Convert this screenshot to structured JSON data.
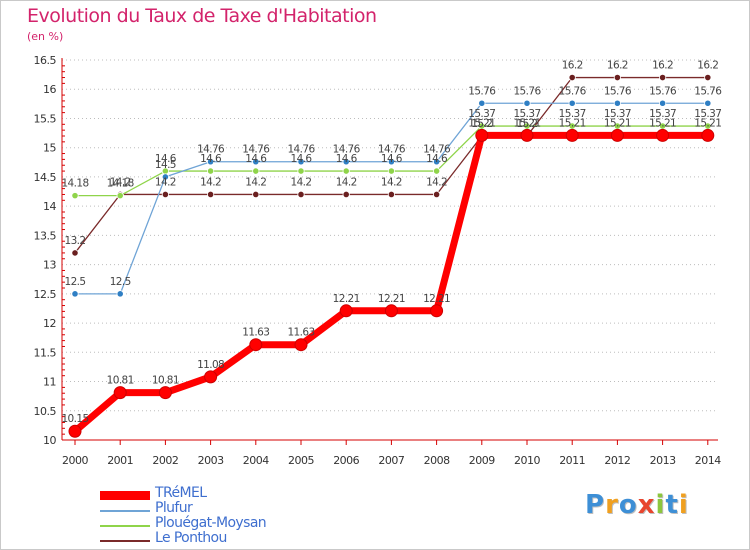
{
  "header": {
    "title": "Evolution du Taux de Taxe d'Habitation",
    "unit": "(en %)"
  },
  "chart_data": {
    "type": "line",
    "x": [
      2000,
      2001,
      2002,
      2003,
      2004,
      2005,
      2006,
      2007,
      2008,
      2009,
      2010,
      2011,
      2012,
      2013,
      2014
    ],
    "ylim": [
      10,
      16.5
    ],
    "yticks": [
      "10",
      "10.5",
      "11",
      "11.5",
      "12",
      "12.5",
      "13",
      "13.5",
      "14",
      "14.5",
      "15",
      "15.5",
      "16",
      "16.5"
    ],
    "grid": "horizontal dotted",
    "series": [
      {
        "name": "TRéMEL",
        "color": "#ff0000",
        "labels": [
          "10.15",
          "10.81",
          "10.81",
          "11.08",
          "11.63",
          "11.63",
          "12.21",
          "12.21",
          "12.21",
          "15.21",
          "15.21",
          "15.21",
          "15.21",
          "15.21",
          "15.21"
        ],
        "values": [
          10.15,
          10.81,
          10.81,
          11.08,
          11.63,
          11.63,
          12.21,
          12.21,
          12.21,
          15.21,
          15.21,
          15.21,
          15.21,
          15.21,
          15.21
        ]
      },
      {
        "name": "Plufur",
        "color": "#6fa4d6",
        "labels": [
          "12.5",
          "12.5",
          "14.5",
          "14.76",
          "14.76",
          "14.76",
          "14.76",
          "14.76",
          "14.76",
          "15.76",
          "15.76",
          "15.76",
          "15.76",
          "15.76",
          "15.76"
        ],
        "values": [
          12.5,
          12.5,
          14.5,
          14.76,
          14.76,
          14.76,
          14.76,
          14.76,
          14.76,
          15.76,
          15.76,
          15.76,
          15.76,
          15.76,
          15.76
        ]
      },
      {
        "name": "Plouégat-Moysan",
        "color": "#8fd44a",
        "labels": [
          "14.18",
          "14.18",
          "14.6",
          "14.6",
          "14.6",
          "14.6",
          "14.6",
          "14.6",
          "14.6",
          "15.37",
          "15.37",
          "15.37",
          "15.37",
          "15.37",
          "15.37"
        ],
        "values": [
          14.18,
          14.18,
          14.6,
          14.6,
          14.6,
          14.6,
          14.6,
          14.6,
          14.6,
          15.37,
          15.37,
          15.37,
          15.37,
          15.37,
          15.37
        ]
      },
      {
        "name": "Le Ponthou",
        "color": "#7a2a2a",
        "labels": [
          "13.2",
          "14.2",
          "14.2",
          "14.2",
          "14.2",
          "14.2",
          "14.2",
          "14.2",
          "14.2",
          "15.2",
          "15.2",
          "16.2",
          "16.2",
          "16.2",
          "16.2"
        ],
        "values": [
          13.2,
          14.2,
          14.2,
          14.2,
          14.2,
          14.2,
          14.2,
          14.2,
          14.2,
          15.2,
          15.2,
          16.2,
          16.2,
          16.2,
          16.2
        ]
      }
    ]
  },
  "legend": {
    "placement": "bottom-left",
    "items": [
      "TRéMEL",
      "Plufur",
      "Plouégat-Moysan",
      "Le Ponthou"
    ]
  },
  "logo": {
    "text": "Proxiti",
    "letters": [
      "P",
      "r",
      "o",
      "x",
      "i",
      "t",
      "i"
    ],
    "colors": [
      "#3d8fd6",
      "#f0a020",
      "#3d8fd6",
      "#e8452e",
      "#8cc63e",
      "#3d8fd6",
      "#f0a020"
    ]
  }
}
